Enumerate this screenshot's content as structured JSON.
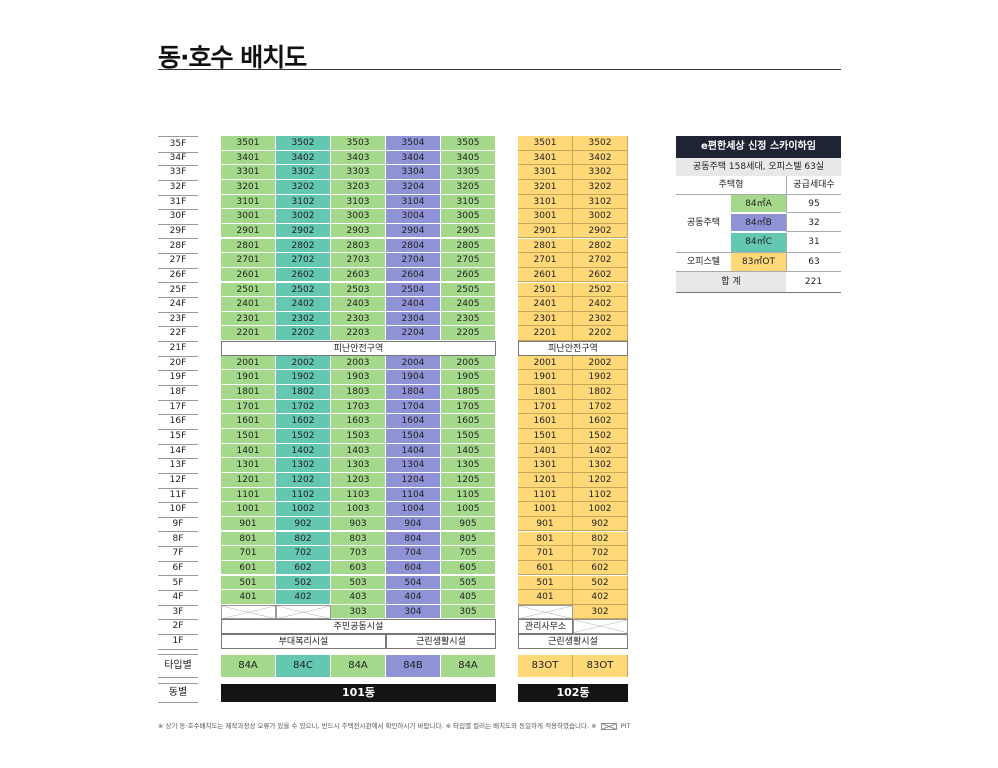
{
  "title": "동·호수 배치도",
  "floors": [
    "35F",
    "34F",
    "33F",
    "32F",
    "31F",
    "30F",
    "29F",
    "28F",
    "27F",
    "26F",
    "25F",
    "24F",
    "23F",
    "22F",
    "21F",
    "20F",
    "19F",
    "18F",
    "17F",
    "16F",
    "15F",
    "14F",
    "13F",
    "12F",
    "11F",
    "10F",
    "9F",
    "8F",
    "7F",
    "6F",
    "5F",
    "4F",
    "3F",
    "2F",
    "1F"
  ],
  "refuge_label": "피난안전구역",
  "b101": {
    "name": "101동",
    "types": [
      "84A",
      "84C",
      "84A",
      "84B",
      "84A"
    ],
    "band_2f": "주민공동시설",
    "band_1f_left": "부대복리시설",
    "band_1f_right": "근린생활시설"
  },
  "b102": {
    "name": "102동",
    "types": [
      "83OT",
      "83OT"
    ],
    "band_2f": "관리사무소",
    "band_1f": "근린생활시설"
  },
  "labels": {
    "type": "타입별",
    "building": "동별"
  },
  "info": {
    "title": "e편한세상 신정 스카이하임",
    "subtitle": "공동주택 158세대, 오피스텔 63실",
    "head_type": "주택형",
    "head_count": "공급세대수",
    "group_apartment": "공동주택",
    "group_officetel": "오피스텔",
    "rows": [
      {
        "type": "84㎡A",
        "count": "95",
        "color": "#a4d98c"
      },
      {
        "type": "84㎡B",
        "count": "32",
        "color": "#8f93d6"
      },
      {
        "type": "84㎡C",
        "count": "31",
        "color": "#63c7b1"
      },
      {
        "type": "83㎡OT",
        "count": "63",
        "color": "#ffd878"
      }
    ],
    "total_label": "합 계",
    "total": "221"
  },
  "footnote": "※ 상기 동·호수배치도는 제작과정상 오류가 있을 수 있으니, 반드시 주택전시관에서 확인하시기 바랍니다.  ※ 타입별 컬러는 배치도와 동일하게 적용하였습니다.  ※",
  "footnote_pit": "PIT"
}
